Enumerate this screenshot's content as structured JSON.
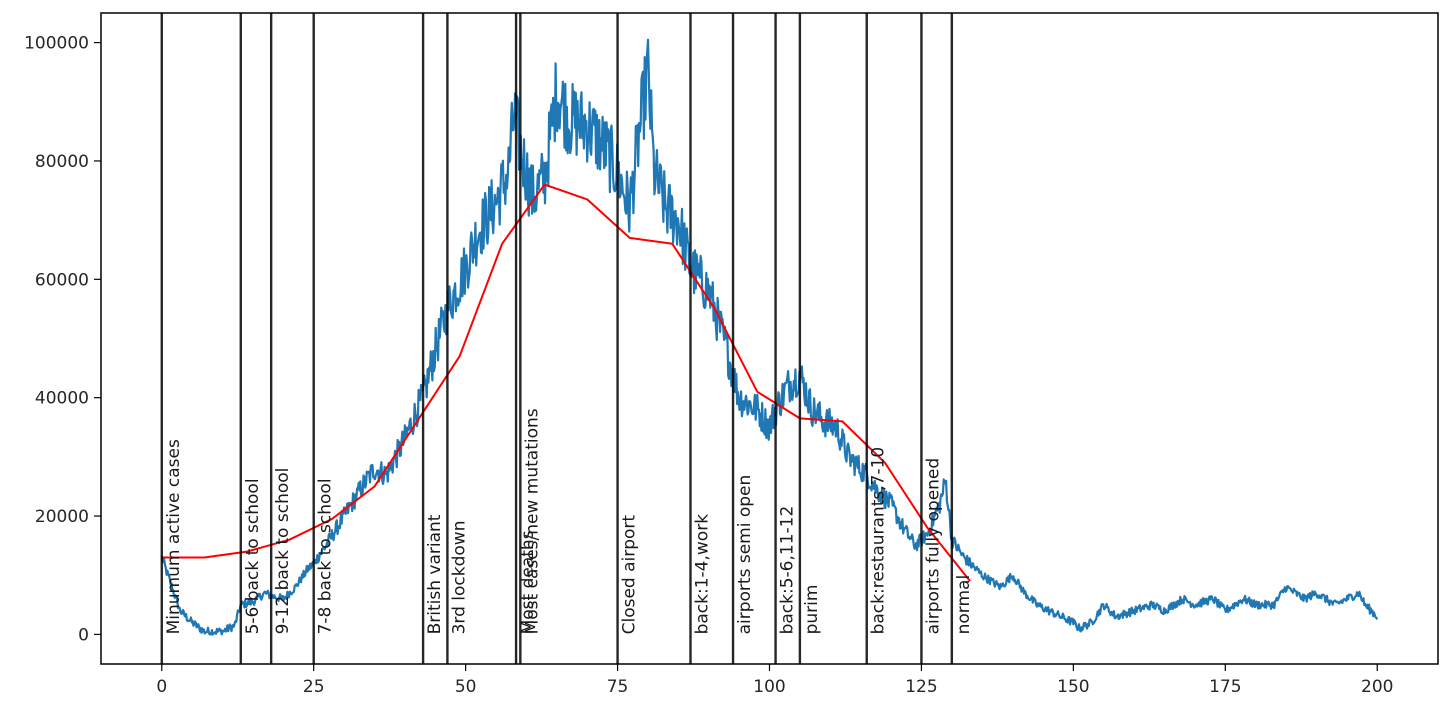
{
  "chart_data": {
    "type": "line",
    "title": "",
    "xlabel": "",
    "ylabel": "",
    "xlim": [
      -10,
      210
    ],
    "ylim": [
      -5000,
      105000
    ],
    "grid": false,
    "x_ticks": [
      0,
      25,
      50,
      75,
      100,
      125,
      150,
      175,
      200
    ],
    "y_ticks": [
      0,
      20000,
      40000,
      60000,
      80000,
      100000
    ],
    "x_tick_labels": [
      "0",
      "25",
      "50",
      "75",
      "100",
      "125",
      "150",
      "175",
      "200"
    ],
    "y_tick_labels": [
      "0",
      "20000",
      "40000",
      "60000",
      "80000",
      "100000"
    ],
    "colors": {
      "daily": "#1f77b4",
      "trend": "#ff0000",
      "events": "#000000"
    },
    "series": [
      {
        "style": "noisy-daily",
        "x": [
          0,
          1,
          3,
          5,
          7,
          10,
          12,
          13,
          15,
          17,
          18,
          20,
          22,
          24,
          25,
          27,
          30,
          33,
          35,
          37,
          40,
          42,
          43,
          45,
          47,
          50,
          52,
          55,
          57,
          58,
          59,
          61,
          63,
          65,
          67,
          70,
          73,
          75,
          77,
          79,
          80,
          81,
          83,
          85,
          87,
          90,
          93,
          95,
          98,
          100,
          101,
          103,
          105,
          107,
          109,
          111,
          113,
          116,
          118,
          120,
          122,
          124,
          126,
          128,
          129,
          130,
          132,
          135,
          138,
          140,
          142,
          144,
          146,
          148,
          150,
          151,
          153,
          155,
          157,
          160,
          163,
          165,
          168,
          170,
          173,
          175,
          178,
          180,
          183,
          185,
          188,
          190,
          193,
          195,
          197,
          198,
          200
        ],
        "y": [
          13000,
          10000,
          4000,
          2000,
          500,
          500,
          1500,
          5000,
          5500,
          7000,
          6500,
          6000,
          8000,
          11000,
          12000,
          15000,
          20000,
          25000,
          28000,
          27000,
          33000,
          38000,
          40000,
          48000,
          55000,
          62000,
          68000,
          73000,
          78000,
          88000,
          82000,
          74000,
          77000,
          92000,
          87000,
          86000,
          82000,
          78000,
          72000,
          88000,
          95000,
          78000,
          72000,
          70000,
          62000,
          58000,
          48000,
          40000,
          38000,
          35000,
          38000,
          42000,
          44000,
          38000,
          36000,
          35000,
          30000,
          27000,
          24000,
          22000,
          18000,
          15000,
          17000,
          22000,
          26000,
          16000,
          13000,
          10000,
          8000,
          10000,
          7000,
          5000,
          4000,
          3000,
          2000,
          1000,
          2000,
          5000,
          3000,
          4000,
          5000,
          4000,
          6000,
          5000,
          6000,
          4000,
          6000,
          5000,
          5000,
          8000,
          6000,
          7000,
          5000,
          6000,
          7000,
          5000,
          3000
        ]
      },
      {
        "style": "trend",
        "x": [
          0,
          7,
          14,
          21,
          28,
          35,
          42,
          49,
          56,
          63,
          70,
          77,
          84,
          91,
          98,
          105,
          112,
          119,
          126,
          133
        ],
        "y": [
          13000,
          13000,
          14000,
          16000,
          19500,
          25000,
          36000,
          47000,
          66000,
          76000,
          73500,
          67000,
          66000,
          55000,
          41000,
          36500,
          36000,
          29000,
          18000,
          9000
        ]
      }
    ],
    "events": [
      {
        "x": 0,
        "label": "Minumum active cases"
      },
      {
        "x": 13,
        "label": "5-6 back to school"
      },
      {
        "x": 18,
        "label": "9-12 back to school"
      },
      {
        "x": 25,
        "label": "7-8 back to school"
      },
      {
        "x": 43,
        "label": "British variant"
      },
      {
        "x": 47,
        "label": "3rd lockdown"
      },
      {
        "x": 58.3,
        "label": "Most deaths"
      },
      {
        "x": 59,
        "label": "Most cases/new mutations"
      },
      {
        "x": 75,
        "label": "Closed airport"
      },
      {
        "x": 87,
        "label": "back:1-4,work"
      },
      {
        "x": 94,
        "label": "airports semi open"
      },
      {
        "x": 101,
        "label": "back:5-6,11-12"
      },
      {
        "x": 105,
        "label": "purim"
      },
      {
        "x": 116,
        "label": "back:restaurants,7-10"
      },
      {
        "x": 125,
        "label": "airports fully opened"
      },
      {
        "x": 130,
        "label": "normal"
      }
    ]
  }
}
